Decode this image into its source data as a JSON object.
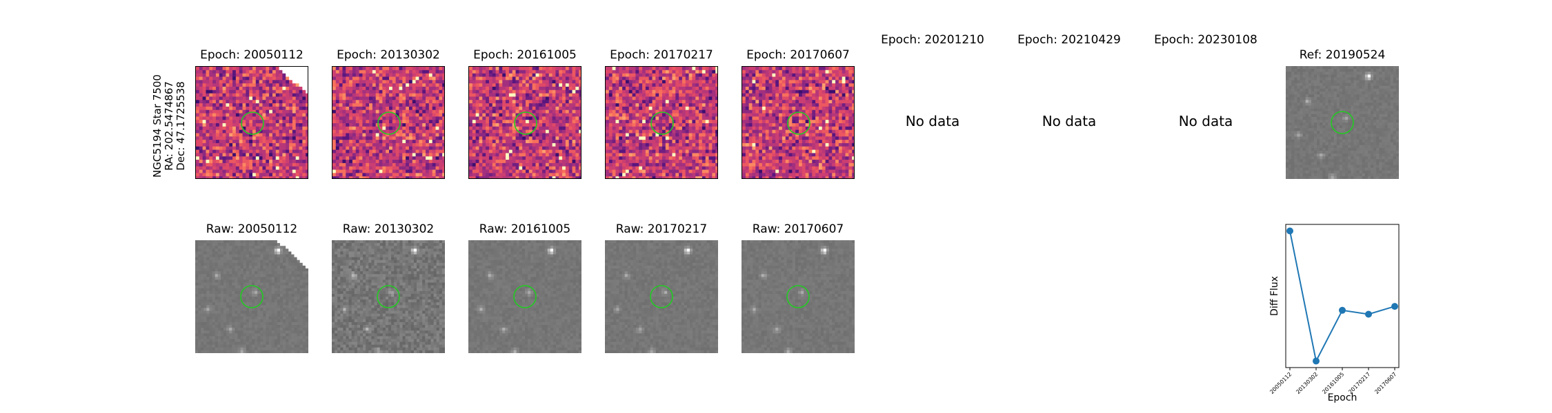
{
  "star_label": {
    "name": "NGC5194 Star 7500",
    "ra": "RA: 202.5474867",
    "dec": "Dec: 47.1725538"
  },
  "diff_panels": [
    {
      "title": "Epoch: 20050112",
      "has_data": true,
      "colormap": "magma"
    },
    {
      "title": "Epoch: 20130302",
      "has_data": true,
      "colormap": "magma"
    },
    {
      "title": "Epoch: 20161005",
      "has_data": true,
      "colormap": "magma"
    },
    {
      "title": "Epoch: 20170217",
      "has_data": true,
      "colormap": "magma"
    },
    {
      "title": "Epoch: 20170607",
      "has_data": true,
      "colormap": "magma"
    },
    {
      "title": "Epoch: 20201210",
      "has_data": false,
      "message": "No data"
    },
    {
      "title": "Epoch: 20210429",
      "has_data": false,
      "message": "No data"
    },
    {
      "title": "Epoch: 20230108",
      "has_data": false,
      "message": "No data"
    }
  ],
  "ref_panel": {
    "title": "Ref: 20190524",
    "colormap": "gray"
  },
  "raw_panels": [
    {
      "title": "Raw: 20050112",
      "colormap": "gray"
    },
    {
      "title": "Raw: 20130302",
      "colormap": "gray"
    },
    {
      "title": "Raw: 20161005",
      "colormap": "gray"
    },
    {
      "title": "Raw: 20170217",
      "colormap": "gray"
    },
    {
      "title": "Raw: 20170607",
      "colormap": "gray"
    }
  ],
  "aperture_color": "#22cc22",
  "chart_data": {
    "type": "line",
    "title": "",
    "xlabel": "Epoch",
    "ylabel": "Diff Flux",
    "categories": [
      "20050112",
      "20130302",
      "20161005",
      "20170217",
      "20170607"
    ],
    "series": [
      {
        "values": [
          1.0,
          0.0,
          0.39,
          0.36,
          0.42
        ]
      }
    ],
    "ylim": [
      -0.05,
      1.05
    ],
    "y_tick_labels_shown": false,
    "grid": false,
    "marker": "circle",
    "color": "#1f77b4"
  }
}
